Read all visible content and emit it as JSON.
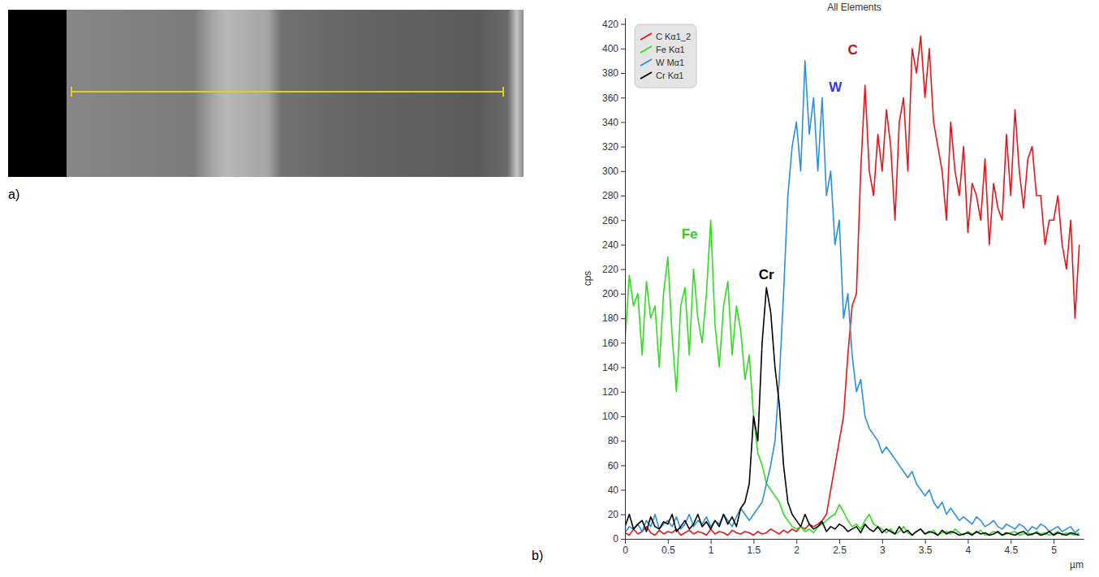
{
  "panel_labels": [
    "a)",
    "b)"
  ],
  "chart_data": {
    "type": "line",
    "title": "All Elements",
    "x_label": "µm",
    "y_label": "cps",
    "xlim": [
      0,
      5.35
    ],
    "ylim": [
      0,
      425
    ],
    "xticks": [
      0,
      0.5,
      1,
      1.5,
      2,
      2.5,
      3,
      3.5,
      4,
      4.5,
      5
    ],
    "yticks": [
      0,
      20,
      40,
      60,
      80,
      100,
      120,
      140,
      160,
      180,
      200,
      220,
      240,
      260,
      280,
      300,
      320,
      340,
      360,
      380,
      400,
      420
    ],
    "grid": false,
    "legend": "upper left",
    "x": [
      0,
      0.05,
      0.1,
      0.15,
      0.2,
      0.25,
      0.3,
      0.35,
      0.4,
      0.45,
      0.5,
      0.55,
      0.6,
      0.65,
      0.7,
      0.75,
      0.8,
      0.85,
      0.9,
      0.95,
      1,
      1.05,
      1.1,
      1.15,
      1.2,
      1.25,
      1.3,
      1.35,
      1.4,
      1.45,
      1.5,
      1.55,
      1.6,
      1.65,
      1.7,
      1.75,
      1.8,
      1.85,
      1.9,
      1.95,
      2,
      2.05,
      2.1,
      2.15,
      2.2,
      2.25,
      2.3,
      2.35,
      2.4,
      2.45,
      2.5,
      2.55,
      2.6,
      2.65,
      2.7,
      2.75,
      2.8,
      2.85,
      2.9,
      2.95,
      3,
      3.05,
      3.1,
      3.15,
      3.2,
      3.25,
      3.3,
      3.35,
      3.4,
      3.45,
      3.5,
      3.55,
      3.6,
      3.65,
      3.7,
      3.75,
      3.8,
      3.85,
      3.9,
      3.95,
      4,
      4.05,
      4.1,
      4.15,
      4.2,
      4.25,
      4.3,
      4.35,
      4.4,
      4.45,
      4.5,
      4.55,
      4.6,
      4.65,
      4.7,
      4.75,
      4.8,
      4.85,
      4.9,
      4.95,
      5,
      5.05,
      5.1,
      5.15,
      5.2,
      5.25,
      5.3
    ],
    "series": [
      {
        "name": "C Kα1_2",
        "color": "#e8151b",
        "values": [
          5,
          3,
          8,
          4,
          6,
          10,
          5,
          3,
          7,
          4,
          6,
          5,
          8,
          3,
          5,
          7,
          4,
          6,
          5,
          3,
          8,
          4,
          6,
          5,
          3,
          7,
          5,
          4,
          6,
          5,
          3,
          6,
          4,
          5,
          8,
          6,
          4,
          7,
          5,
          8,
          6,
          10,
          8,
          12,
          10,
          12,
          15,
          20,
          40,
          60,
          80,
          100,
          150,
          190,
          200,
          300,
          370,
          300,
          280,
          330,
          300,
          350,
          320,
          260,
          340,
          360,
          300,
          400,
          380,
          410,
          360,
          400,
          340,
          320,
          300,
          260,
          340,
          300,
          280,
          320,
          250,
          290,
          280,
          260,
          310,
          240,
          290,
          270,
          260,
          330,
          280,
          350,
          300,
          270,
          310,
          320,
          280,
          280,
          240,
          260,
          260,
          280,
          240,
          220,
          260,
          180,
          240
        ]
      },
      {
        "name": "Fe Kα1",
        "color": "#2fdc1f",
        "values": [
          160,
          215,
          190,
          200,
          150,
          210,
          180,
          190,
          140,
          200,
          230,
          165,
          120,
          190,
          205,
          150,
          220,
          180,
          160,
          200,
          260,
          175,
          140,
          190,
          210,
          150,
          190,
          170,
          130,
          150,
          100,
          70,
          60,
          45,
          40,
          35,
          30,
          20,
          15,
          10,
          8,
          10,
          6,
          8,
          5,
          10,
          12,
          15,
          18,
          20,
          28,
          22,
          15,
          10,
          12,
          8,
          15,
          20,
          12,
          10,
          8,
          5,
          8,
          4,
          6,
          10,
          5,
          3,
          6,
          8,
          4,
          5,
          7,
          3,
          5,
          6,
          4,
          8,
          5,
          3,
          6,
          4,
          5,
          7,
          3,
          4,
          6,
          5,
          3,
          4,
          5,
          6,
          3,
          4,
          5,
          3,
          6,
          4,
          5,
          3,
          4,
          6,
          3,
          5,
          4,
          3,
          5
        ]
      },
      {
        "name": "W Mα1",
        "color": "#2b8fe0",
        "values": [
          5,
          10,
          8,
          12,
          6,
          15,
          10,
          20,
          8,
          12,
          15,
          10,
          18,
          8,
          12,
          20,
          10,
          15,
          12,
          18,
          10,
          15,
          12,
          20,
          15,
          10,
          18,
          25,
          20,
          15,
          20,
          25,
          30,
          45,
          60,
          80,
          130,
          200,
          280,
          320,
          340,
          300,
          390,
          330,
          360,
          300,
          360,
          280,
          300,
          240,
          260,
          180,
          200,
          150,
          120,
          130,
          100,
          90,
          85,
          80,
          70,
          75,
          70,
          65,
          60,
          55,
          50,
          55,
          45,
          40,
          35,
          40,
          30,
          25,
          30,
          20,
          25,
          20,
          15,
          18,
          15,
          12,
          18,
          15,
          10,
          12,
          15,
          10,
          8,
          12,
          10,
          8,
          12,
          10,
          6,
          10,
          8,
          12,
          10,
          6,
          8,
          10,
          6,
          8,
          10,
          5,
          8
        ]
      },
      {
        "name": "Cr Kα1",
        "color": "#000000",
        "values": [
          10,
          20,
          8,
          12,
          15,
          6,
          18,
          10,
          8,
          14,
          12,
          20,
          6,
          10,
          15,
          8,
          12,
          20,
          10,
          14,
          8,
          15,
          10,
          20,
          12,
          18,
          10,
          25,
          30,
          45,
          100,
          80,
          160,
          205,
          185,
          140,
          110,
          60,
          30,
          20,
          15,
          10,
          20,
          12,
          8,
          10,
          14,
          6,
          10,
          8,
          12,
          10,
          6,
          8,
          10,
          5,
          12,
          8,
          6,
          10,
          5,
          8,
          6,
          4,
          10,
          5,
          7,
          3,
          6,
          8,
          4,
          6,
          5,
          3,
          7,
          4,
          6,
          5,
          3,
          4,
          5,
          3,
          6,
          4,
          5,
          3,
          4,
          6,
          3,
          5,
          4,
          3,
          5,
          6,
          3,
          4,
          5,
          3,
          4,
          6,
          3,
          5,
          4,
          3,
          5,
          4,
          3
        ]
      }
    ],
    "annotations": [
      {
        "text": "Fe",
        "x": 0.66,
        "y": 245,
        "color": "#2fcc1f"
      },
      {
        "text": "Cr",
        "x": 1.56,
        "y": 212,
        "color": "#000000"
      },
      {
        "text": "W",
        "x": 2.38,
        "y": 365,
        "color": "#3a3ad0"
      },
      {
        "text": "C",
        "x": 2.6,
        "y": 395,
        "color": "#c0101a"
      }
    ]
  }
}
